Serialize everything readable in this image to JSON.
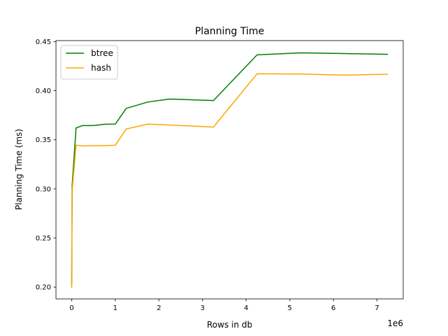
{
  "chart_data": {
    "type": "line",
    "title": "Planning Time",
    "xlabel": "Rows in db",
    "ylabel": "Planning Time (ms)",
    "x_offset_label": "1e6",
    "xlim": [
      -0.36,
      7.6
    ],
    "ylim": [
      0.188,
      0.451
    ],
    "x_ticks": [
      0,
      1,
      2,
      3,
      4,
      5,
      6,
      7
    ],
    "x_tick_labels": [
      "0",
      "1",
      "2",
      "3",
      "4",
      "5",
      "6",
      "7"
    ],
    "y_ticks": [
      0.2,
      0.25,
      0.3,
      0.35,
      0.4,
      0.45
    ],
    "y_tick_labels": [
      "0.20",
      "0.25",
      "0.30",
      "0.35",
      "0.40",
      "0.45"
    ],
    "grid": false,
    "legend": "upper-left",
    "x": [
      0,
      0.01,
      0.1,
      0.25,
      0.5,
      0.75,
      1.0,
      1.25,
      1.75,
      2.25,
      3.25,
      4.25,
      5.25,
      6.25,
      7.25
    ],
    "series": [
      {
        "name": "btree",
        "color": "#008000",
        "values": [
          0.202,
          0.303,
          0.362,
          0.3645,
          0.3645,
          0.3658,
          0.366,
          0.382,
          0.3885,
          0.3915,
          0.39,
          0.4365,
          0.4385,
          0.4378,
          0.437
        ]
      },
      {
        "name": "hash",
        "color": "#ffa500",
        "values": [
          0.199,
          0.298,
          0.3445,
          0.3437,
          0.344,
          0.344,
          0.3445,
          0.361,
          0.366,
          0.365,
          0.363,
          0.4172,
          0.417,
          0.4158,
          0.4168
        ]
      }
    ]
  }
}
